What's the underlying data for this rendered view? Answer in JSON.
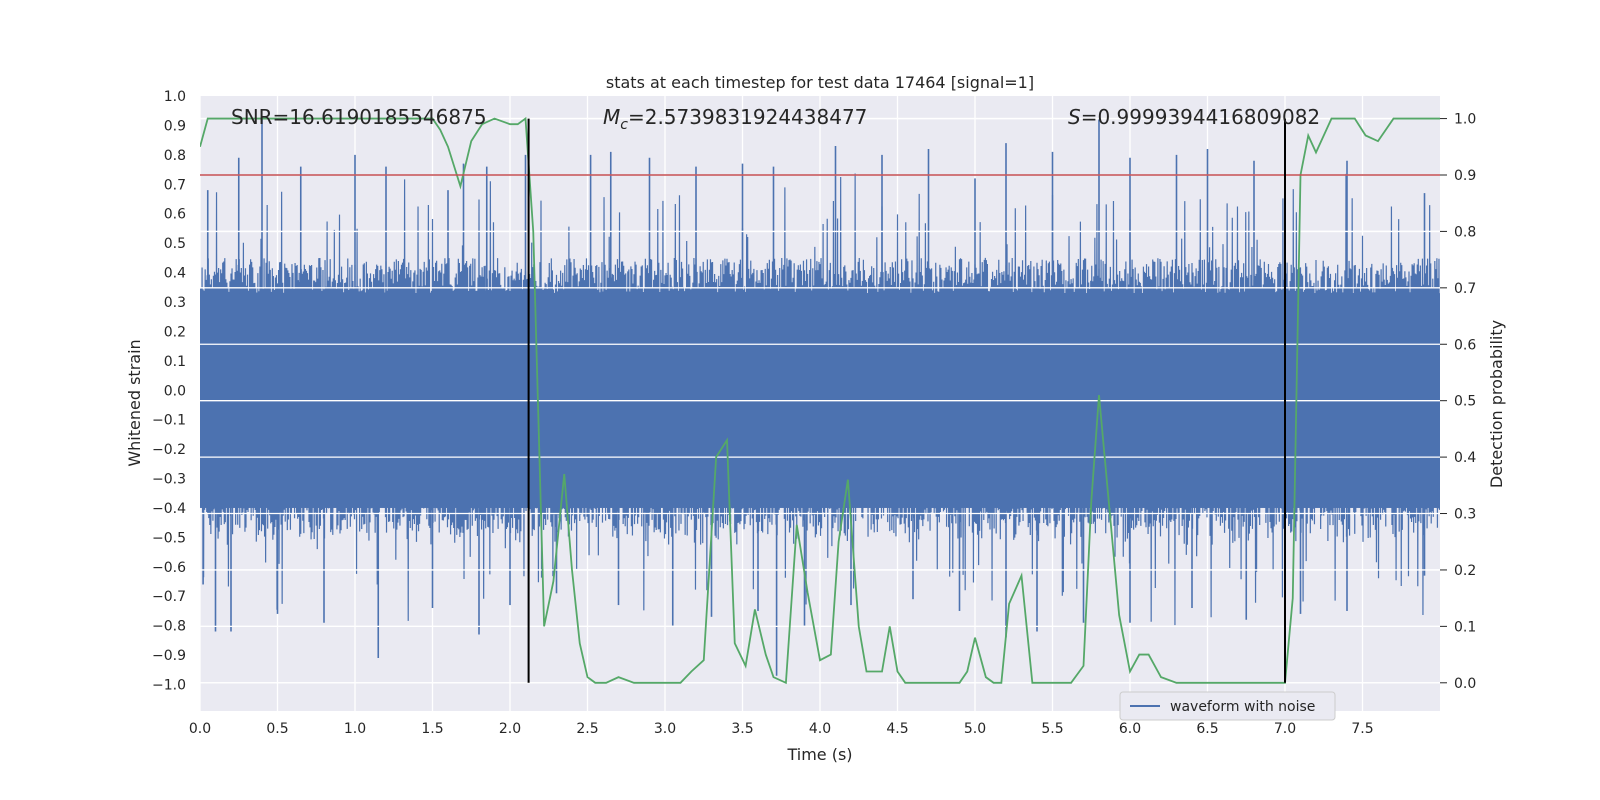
{
  "chart_data": {
    "type": "line",
    "title": "stats at each timestep for test data 17464 [signal=1]",
    "xlabel": "Time (s)",
    "ylabel": "Whitened strain",
    "y2label": "Detection probability",
    "xlim": [
      0.0,
      8.0
    ],
    "ylim": [
      -1.09,
      1.0
    ],
    "y2lim": [
      -0.05,
      1.04
    ],
    "xticks": [
      "0.0",
      "0.5",
      "1.0",
      "1.5",
      "2.0",
      "2.5",
      "3.0",
      "3.5",
      "4.0",
      "4.5",
      "5.0",
      "5.5",
      "6.0",
      "6.5",
      "7.0",
      "7.5"
    ],
    "yticks": [
      "1.0",
      "0.9",
      "0.8",
      "0.7",
      "0.6",
      "0.5",
      "0.4",
      "0.3",
      "0.2",
      "0.1",
      "0.0",
      "-0.1",
      "-0.2",
      "-0.3",
      "-0.4",
      "-0.5",
      "-0.6",
      "-0.7",
      "-0.8",
      "-0.9",
      "-1.0"
    ],
    "y2ticks": [
      "1.0",
      "0.9",
      "0.8",
      "0.7",
      "0.6",
      "0.5",
      "0.4",
      "0.3",
      "0.2",
      "0.1",
      "0.0"
    ],
    "annotations": {
      "snr": "SNR=16.6190185546875",
      "mc_symbol": "M",
      "mc_sub": "c",
      "mc_value": "=2.5739831924438477",
      "s_symbol": "S",
      "s_value": "=0.9999394416809082"
    },
    "threshold": {
      "value": 0.9,
      "axis": "y2",
      "color": "#c44e52"
    },
    "signal_window": {
      "start": 2.12,
      "end": 7.0
    },
    "colors": {
      "waveform": "#4c72b0",
      "probability": "#55a868",
      "threshold": "#c44e52",
      "window": "#000000"
    },
    "series": [
      {
        "name": "waveform with noise",
        "axis": "y",
        "note": "dense noisy strain; envelope approx ±0.4 with spikes",
        "peaks": [
          [
            0.05,
            0.68
          ],
          [
            0.25,
            0.79
          ],
          [
            0.4,
            0.93
          ],
          [
            0.65,
            0.76
          ],
          [
            1.0,
            0.8
          ],
          [
            1.2,
            0.76
          ],
          [
            1.6,
            0.68
          ],
          [
            1.7,
            0.77
          ],
          [
            1.85,
            0.76
          ],
          [
            2.1,
            0.8
          ],
          [
            2.52,
            0.8
          ],
          [
            2.65,
            0.81
          ],
          [
            2.9,
            0.79
          ],
          [
            3.2,
            0.76
          ],
          [
            3.5,
            0.77
          ],
          [
            3.7,
            0.76
          ],
          [
            4.1,
            0.83
          ],
          [
            4.4,
            0.8
          ],
          [
            4.7,
            0.82
          ],
          [
            5.0,
            0.72
          ],
          [
            5.2,
            0.84
          ],
          [
            5.5,
            0.81
          ],
          [
            5.8,
            0.92
          ],
          [
            6.0,
            0.79
          ],
          [
            6.3,
            0.8
          ],
          [
            6.5,
            0.82
          ],
          [
            6.8,
            0.78
          ],
          [
            7.0,
            0.8
          ],
          [
            7.4,
            0.78
          ],
          [
            7.9,
            0.67
          ]
        ],
        "troughs": [
          [
            0.02,
            -0.66
          ],
          [
            0.1,
            -0.82
          ],
          [
            0.2,
            -0.82
          ],
          [
            0.5,
            -0.76
          ],
          [
            0.8,
            -0.79
          ],
          [
            1.15,
            -0.91
          ],
          [
            1.5,
            -0.74
          ],
          [
            1.8,
            -0.83
          ],
          [
            2.0,
            -0.73
          ],
          [
            2.3,
            -0.69
          ],
          [
            2.7,
            -0.73
          ],
          [
            3.05,
            -0.8
          ],
          [
            3.3,
            -0.77
          ],
          [
            3.6,
            -0.75
          ],
          [
            3.72,
            -0.97
          ],
          [
            3.9,
            -0.8
          ],
          [
            4.2,
            -0.73
          ],
          [
            4.6,
            -0.71
          ],
          [
            4.9,
            -0.75
          ],
          [
            5.2,
            -0.84
          ],
          [
            5.4,
            -0.82
          ],
          [
            5.7,
            -0.79
          ],
          [
            6.0,
            -0.79
          ],
          [
            6.4,
            -0.74
          ],
          [
            6.75,
            -0.78
          ],
          [
            7.1,
            -0.76
          ],
          [
            7.4,
            -0.75
          ],
          [
            7.9,
            -0.63
          ]
        ]
      },
      {
        "name": "detection probability",
        "axis": "y2",
        "x": [
          0.0,
          0.05,
          0.1,
          0.2,
          0.3,
          0.4,
          0.5,
          0.6,
          0.7,
          0.8,
          0.9,
          1.0,
          1.1,
          1.2,
          1.3,
          1.4,
          1.5,
          1.55,
          1.6,
          1.68,
          1.75,
          1.82,
          1.9,
          2.0,
          2.05,
          2.1,
          2.15,
          2.22,
          2.28,
          2.35,
          2.4,
          2.45,
          2.5,
          2.55,
          2.62,
          2.7,
          2.8,
          2.9,
          3.0,
          3.1,
          3.17,
          3.25,
          3.33,
          3.4,
          3.45,
          3.52,
          3.58,
          3.65,
          3.7,
          3.78,
          3.85,
          3.92,
          4.0,
          4.07,
          4.12,
          4.18,
          4.25,
          4.3,
          4.4,
          4.45,
          4.5,
          4.55,
          4.65,
          4.75,
          4.85,
          4.9,
          4.95,
          5.0,
          5.07,
          5.12,
          5.17,
          5.22,
          5.3,
          5.37,
          5.42,
          5.5,
          5.57,
          5.62,
          5.7,
          5.75,
          5.8,
          5.87,
          5.93,
          6.0,
          6.06,
          6.12,
          6.2,
          6.3,
          6.5,
          6.7,
          6.85,
          6.95,
          7.0,
          7.05,
          7.1,
          7.15,
          7.2,
          7.25,
          7.3,
          7.38,
          7.45,
          7.52,
          7.6,
          7.7,
          7.8,
          7.9,
          8.0
        ],
        "y": [
          0.95,
          1.0,
          1.0,
          1.0,
          1.0,
          1.0,
          1.0,
          1.0,
          1.0,
          1.0,
          1.0,
          1.0,
          1.0,
          1.0,
          1.0,
          1.0,
          1.0,
          0.98,
          0.95,
          0.88,
          0.96,
          0.99,
          1.0,
          0.99,
          0.99,
          1.0,
          0.8,
          0.1,
          0.18,
          0.37,
          0.2,
          0.07,
          0.01,
          0.0,
          0.0,
          0.01,
          0.0,
          0.0,
          0.0,
          0.0,
          0.02,
          0.04,
          0.4,
          0.43,
          0.07,
          0.03,
          0.13,
          0.05,
          0.01,
          0.0,
          0.28,
          0.16,
          0.04,
          0.05,
          0.25,
          0.36,
          0.1,
          0.02,
          0.02,
          0.1,
          0.02,
          0.0,
          0.0,
          0.0,
          0.0,
          0.0,
          0.02,
          0.08,
          0.01,
          0.0,
          0.0,
          0.14,
          0.19,
          0.0,
          0.0,
          0.0,
          0.0,
          0.0,
          0.03,
          0.32,
          0.51,
          0.3,
          0.12,
          0.02,
          0.05,
          0.05,
          0.01,
          0.0,
          0.0,
          0.0,
          0.0,
          0.0,
          0.0,
          0.15,
          0.9,
          0.97,
          0.94,
          0.97,
          1.0,
          1.0,
          1.0,
          0.97,
          0.96,
          1.0,
          1.0,
          1.0,
          1.0
        ]
      }
    ],
    "legend": {
      "label": "waveform with noise",
      "position": "lower-right"
    }
  }
}
